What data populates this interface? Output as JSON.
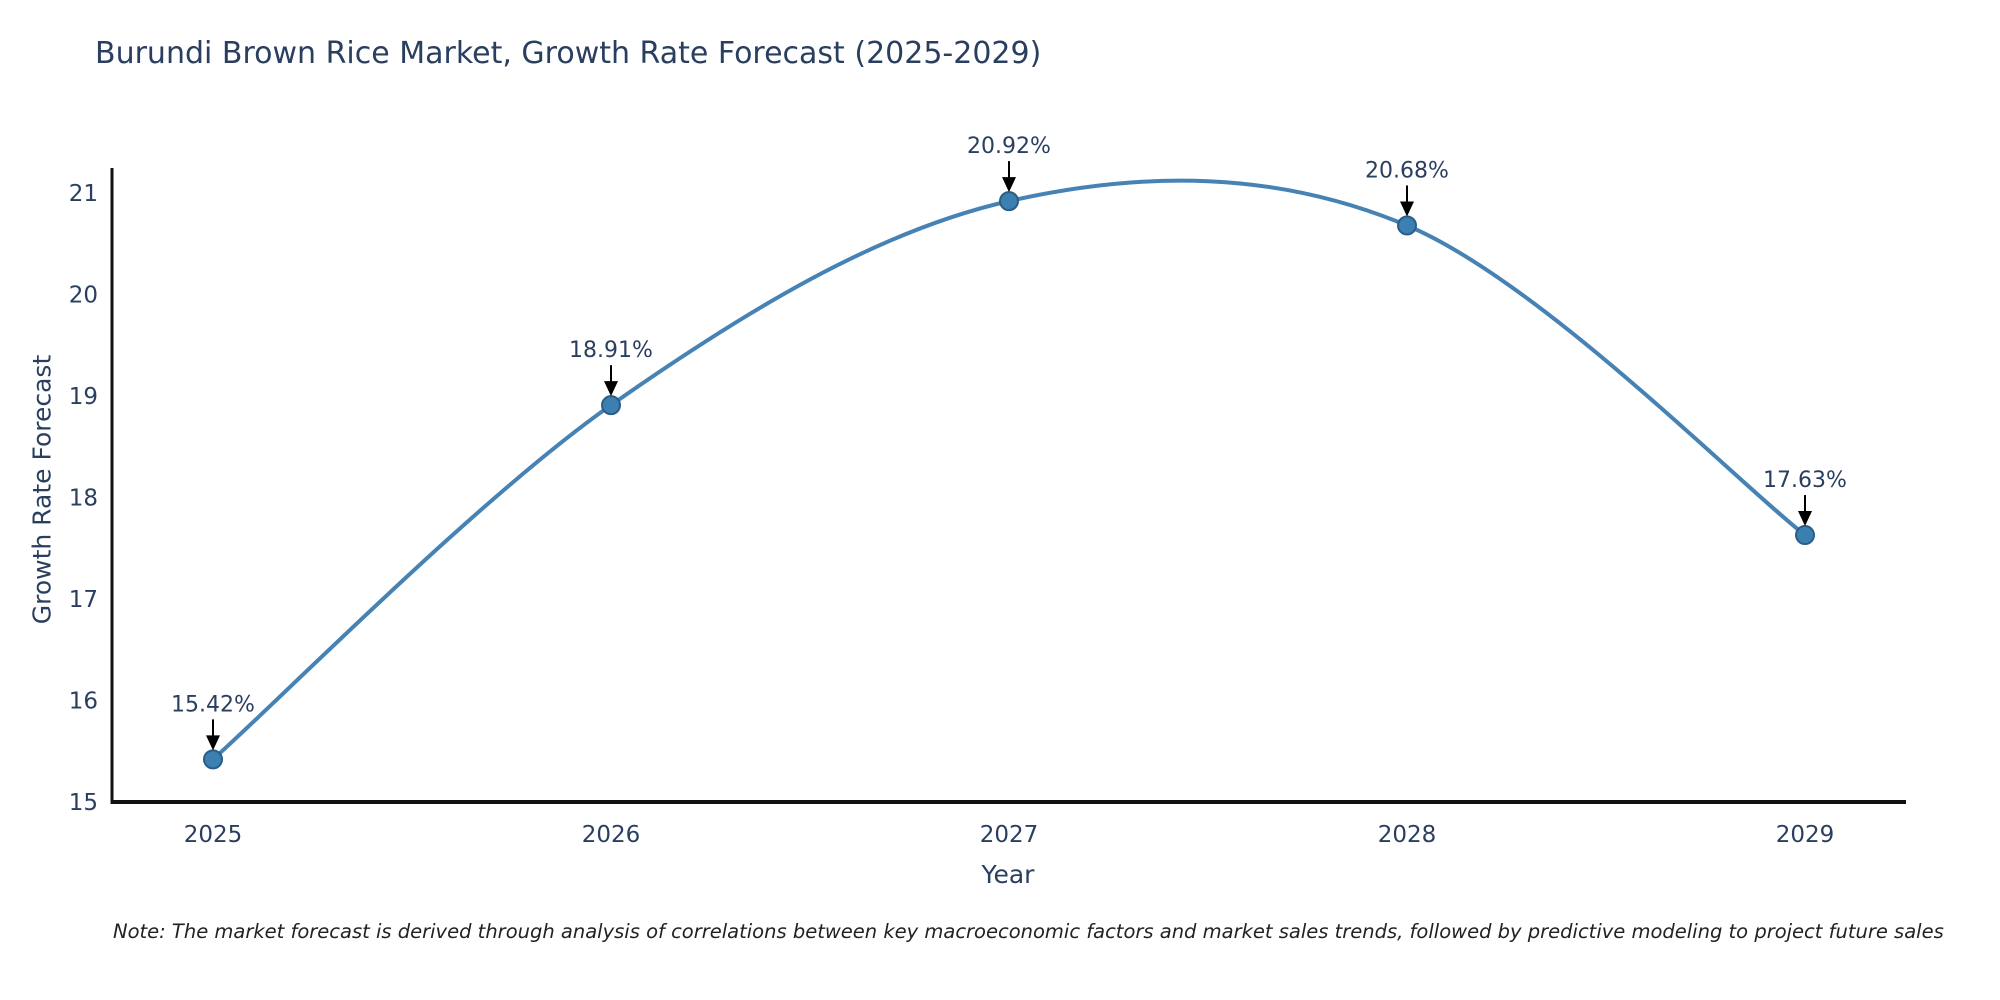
{
  "title": "Burundi Brown Rice Market, Growth Rate Forecast (2025-2029)",
  "footnote": "Note: The market forecast is derived through analysis of correlations between key macroeconomic factors and market sales trends, followed by predictive modeling to project future sales",
  "chart_data": {
    "type": "line",
    "line_shape": "spline",
    "title": "Burundi Brown Rice Market, Growth Rate Forecast (2025-2029)",
    "xlabel": "Year",
    "ylabel": "Growth Rate Forecast",
    "x": [
      2025,
      2026,
      2027,
      2028,
      2029
    ],
    "series": [
      {
        "name": "Growth Rate Forecast",
        "values": [
          15.42,
          18.91,
          20.92,
          20.68,
          17.63
        ]
      }
    ],
    "point_labels": [
      "15.42%",
      "18.91%",
      "20.92%",
      "20.68%",
      "17.63%"
    ],
    "yticks": [
      15,
      16,
      17,
      18,
      19,
      20,
      21
    ],
    "ylim": [
      15,
      21.3
    ],
    "grid": false,
    "legend": "none",
    "colors": {
      "line": "#4682b4",
      "marker_fill": "#3c7fb1",
      "marker_edge": "#2b5d87",
      "axis_line": "#111111",
      "tick_text": "#2a3f5f",
      "annotation_text": "#2a3f5f",
      "arrow": "#000000",
      "background": "#ffffff"
    }
  }
}
